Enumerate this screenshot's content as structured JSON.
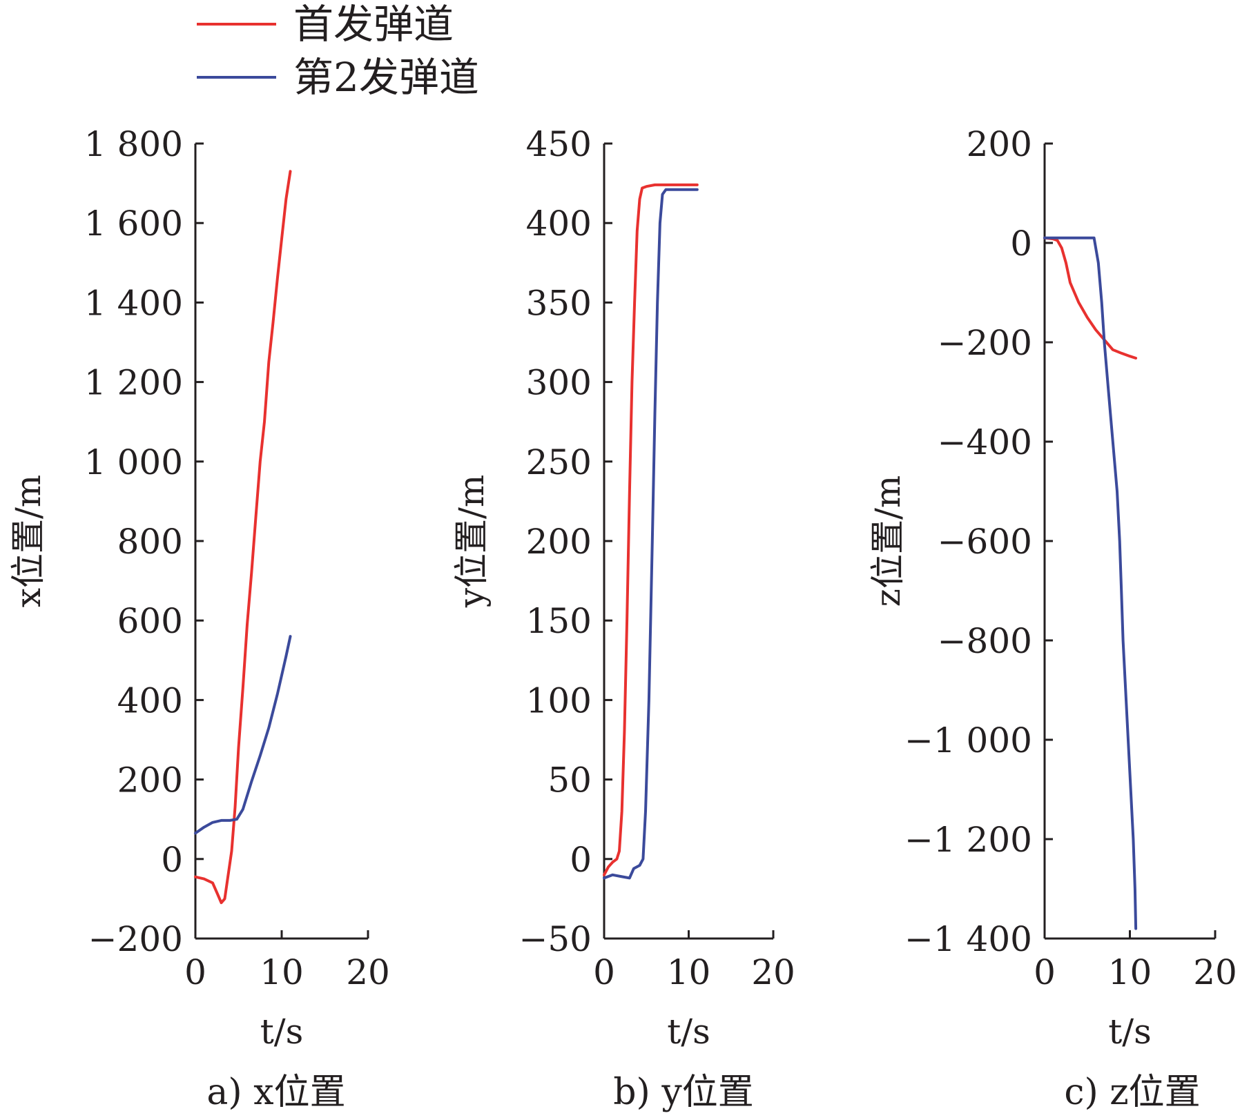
{
  "legend": [
    {
      "label": "首发弹道",
      "color": "#e8312f"
    },
    {
      "label": "第2发弹道",
      "color": "#3b4a9b"
    }
  ],
  "chart_data": [
    {
      "type": "line",
      "caption": "a) x位置",
      "xlabel": "t/s",
      "ylabel": "x位置/m",
      "xlim": [
        0,
        20
      ],
      "ylim": [
        -200,
        1800
      ],
      "xticks": [
        0,
        10,
        20
      ],
      "yticks": [
        -200,
        0,
        200,
        400,
        600,
        800,
        1000,
        1200,
        1400,
        1600,
        1800
      ],
      "xtick_labels": [
        "0",
        "10",
        "20"
      ],
      "ytick_labels": [
        "−200",
        "0",
        "200",
        "400",
        "600",
        "800",
        "1 000",
        "1 200",
        "1 400",
        "1 600",
        "1 800"
      ],
      "series": [
        {
          "name": "首发弹道",
          "color": "#e8312f",
          "points": [
            [
              0,
              -45
            ],
            [
              1,
              -50
            ],
            [
              2,
              -60
            ],
            [
              2.6,
              -90
            ],
            [
              3,
              -110
            ],
            [
              3.4,
              -100
            ],
            [
              3.8,
              -40
            ],
            [
              4.2,
              20
            ],
            [
              4.6,
              130
            ],
            [
              5,
              280
            ],
            [
              5.5,
              430
            ],
            [
              6,
              590
            ],
            [
              6.5,
              720
            ],
            [
              7,
              860
            ],
            [
              7.5,
              1000
            ],
            [
              8,
              1100
            ],
            [
              8.5,
              1250
            ],
            [
              9,
              1350
            ],
            [
              9.5,
              1460
            ],
            [
              10,
              1560
            ],
            [
              10.5,
              1660
            ],
            [
              11,
              1730
            ]
          ]
        },
        {
          "name": "第2发弹道",
          "color": "#3b4a9b",
          "points": [
            [
              0,
              65
            ],
            [
              1,
              80
            ],
            [
              2,
              92
            ],
            [
              3,
              97
            ],
            [
              4,
              97
            ],
            [
              4.8,
              100
            ],
            [
              5.5,
              125
            ],
            [
              6.5,
              195
            ],
            [
              7.5,
              260
            ],
            [
              8.5,
              330
            ],
            [
              9.5,
              415
            ],
            [
              10.5,
              510
            ],
            [
              11,
              560
            ]
          ]
        }
      ]
    },
    {
      "type": "line",
      "caption": "b) y位置",
      "xlabel": "t/s",
      "ylabel": "y位置/m",
      "xlim": [
        0,
        20
      ],
      "ylim": [
        -50,
        450
      ],
      "xticks": [
        0,
        10,
        20
      ],
      "yticks": [
        -50,
        0,
        50,
        100,
        150,
        200,
        250,
        300,
        350,
        400,
        450
      ],
      "xtick_labels": [
        "0",
        "10",
        "20"
      ],
      "ytick_labels": [
        "−50",
        "0",
        "50",
        "100",
        "150",
        "200",
        "250",
        "300",
        "350",
        "400",
        "450"
      ],
      "series": [
        {
          "name": "首发弹道",
          "color": "#e8312f",
          "points": [
            [
              0,
              -10
            ],
            [
              0.5,
              -5
            ],
            [
              1,
              -2
            ],
            [
              1.5,
              0
            ],
            [
              1.8,
              5
            ],
            [
              2.1,
              30
            ],
            [
              2.4,
              80
            ],
            [
              2.7,
              150
            ],
            [
              3,
              230
            ],
            [
              3.3,
              300
            ],
            [
              3.6,
              350
            ],
            [
              3.9,
              395
            ],
            [
              4.2,
              415
            ],
            [
              4.5,
              422
            ],
            [
              5,
              423
            ],
            [
              6,
              424
            ],
            [
              8,
              424
            ],
            [
              11,
              424
            ]
          ]
        },
        {
          "name": "第2发弹道",
          "color": "#3b4a9b",
          "points": [
            [
              0,
              -12
            ],
            [
              1,
              -10
            ],
            [
              2,
              -11
            ],
            [
              3,
              -12
            ],
            [
              3.5,
              -6
            ],
            [
              4.2,
              -4
            ],
            [
              4.6,
              0
            ],
            [
              4.9,
              30
            ],
            [
              5.3,
              100
            ],
            [
              5.7,
              200
            ],
            [
              6,
              280
            ],
            [
              6.3,
              350
            ],
            [
              6.6,
              400
            ],
            [
              6.9,
              418
            ],
            [
              7.3,
              421
            ],
            [
              9,
              421
            ],
            [
              11,
              421
            ]
          ]
        }
      ]
    },
    {
      "type": "line",
      "caption": "c) z位置",
      "xlabel": "t/s",
      "ylabel": "z位置/m",
      "xlim": [
        0,
        20
      ],
      "ylim": [
        -1400,
        200
      ],
      "xticks": [
        0,
        10,
        20
      ],
      "yticks": [
        -1400,
        -1200,
        -1000,
        -800,
        -600,
        -400,
        -200,
        0,
        200
      ],
      "xtick_labels": [
        "0",
        "10",
        "20"
      ],
      "ytick_labels": [
        "−1 400",
        "−1 200",
        "−1 000",
        "−800",
        "−600",
        "−400",
        "−200",
        "0",
        "200"
      ],
      "series": [
        {
          "name": "首发弹道",
          "color": "#e8312f",
          "points": [
            [
              0,
              10
            ],
            [
              1,
              8
            ],
            [
              1.5,
              5
            ],
            [
              2,
              -10
            ],
            [
              2.5,
              -40
            ],
            [
              3,
              -80
            ],
            [
              3.5,
              -100
            ],
            [
              4,
              -120
            ],
            [
              5,
              -150
            ],
            [
              6,
              -175
            ],
            [
              7,
              -195
            ],
            [
              8,
              -215
            ],
            [
              9,
              -222
            ],
            [
              10,
              -228
            ],
            [
              10.7,
              -232
            ]
          ]
        },
        {
          "name": "第2发弹道",
          "color": "#3b4a9b",
          "points": [
            [
              0,
              10
            ],
            [
              2,
              10
            ],
            [
              4,
              10
            ],
            [
              5.8,
              10
            ],
            [
              6.3,
              -40
            ],
            [
              6.7,
              -120
            ],
            [
              7,
              -200
            ],
            [
              7.5,
              -300
            ],
            [
              8,
              -400
            ],
            [
              8.5,
              -500
            ],
            [
              8.8,
              -600
            ],
            [
              9,
              -700
            ],
            [
              9.2,
              -800
            ],
            [
              9.5,
              -900
            ],
            [
              9.8,
              -1000
            ],
            [
              10.1,
              -1100
            ],
            [
              10.4,
              -1200
            ],
            [
              10.6,
              -1300
            ],
            [
              10.7,
              -1380
            ]
          ]
        }
      ]
    }
  ]
}
